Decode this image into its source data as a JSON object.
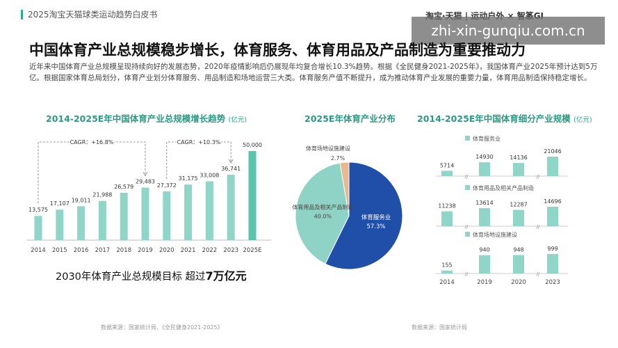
{
  "header": {
    "report_title": "2025淘宝天猫球类运动趋势白皮书",
    "brand": "淘宝·天猫 | 运动户外 × 智篆GI"
  },
  "watermark": "zhi-xin-gunqiu.com.cn",
  "main": {
    "heading": "中国体育产业总规模稳步增长，体育服务、体育用品及产品制造为重要推动力",
    "intro": "近年来中国体育产业总规模呈现持续向好的发展态势，2020年疫情影响后仍展现年均复合增长10.3%趋势。根据《全民健身2021-2025年》，我国体育产业2025年预计达到5万亿。根据国家体育总局划分，体育产业划分体育服务、用品制造和场地运营三大类。体育服务产值不断提升，成为推动体育产业发展的重要力量，体育用品制造保持稳定增长。",
    "target_prefix": "2030年体育产业总规模目标 超过",
    "target_value": "7万亿元",
    "source_left": "数据来源：国家统计局、《全民健身2021-2025》",
    "source_right": "数据来源：国家统计局"
  },
  "colors": {
    "accent": "#2dab8c",
    "bar": "#8fd6c8",
    "bar_last": "#5cc3ad",
    "pie_service": "#1f4fa8",
    "pie_goods": "#8fd3c6",
    "pie_venue": "#e8b88f"
  },
  "chart_data": [
    {
      "type": "bar",
      "title": "2014-2025E年中国体育产业总规模增长趋势",
      "unit": "(亿元)",
      "categories": [
        "2014",
        "2015",
        "2016",
        "2017",
        "2018",
        "2019",
        "2020",
        "2021",
        "2022",
        "2023",
        "2025E"
      ],
      "values": [
        13575,
        17107,
        19011,
        21988,
        26579,
        29483,
        27372,
        31175,
        33008,
        36741,
        50000
      ],
      "value_labels": [
        "13,575",
        "17,107",
        "19,011",
        "21,988",
        "26,579",
        "29,483",
        "27,372",
        "31,175",
        "33,008",
        "36,741",
        "50,000"
      ],
      "annotations": [
        "CAGR：+16.8%",
        "CAGR：+10.3%"
      ],
      "ylim": [
        0,
        50000
      ]
    },
    {
      "type": "pie",
      "title": "2025E年体育产业分布",
      "slices": [
        {
          "label": "体育服务业",
          "value": 57.3,
          "text": "57.3%"
        },
        {
          "label": "体育用品及相关产品制造",
          "value": 40.0,
          "text": "40.0%"
        },
        {
          "label": "体育场地设施建设",
          "value": 2.7,
          "text": "2.7%"
        }
      ]
    },
    {
      "type": "bar",
      "title": "2014-2025E年中国体育细分产业规模",
      "unit": "(亿元)",
      "categories": [
        "2014",
        "2019",
        "2020",
        "2023"
      ],
      "series": [
        {
          "name": "体育服务业",
          "values": [
            5714,
            14930,
            14136,
            21046
          ]
        },
        {
          "name": "体育用品及相关产品制造",
          "values": [
            11238,
            13614,
            12287,
            14696
          ]
        },
        {
          "name": "体育场地设施建设",
          "values": [
            155,
            940,
            948,
            999
          ]
        }
      ]
    }
  ]
}
